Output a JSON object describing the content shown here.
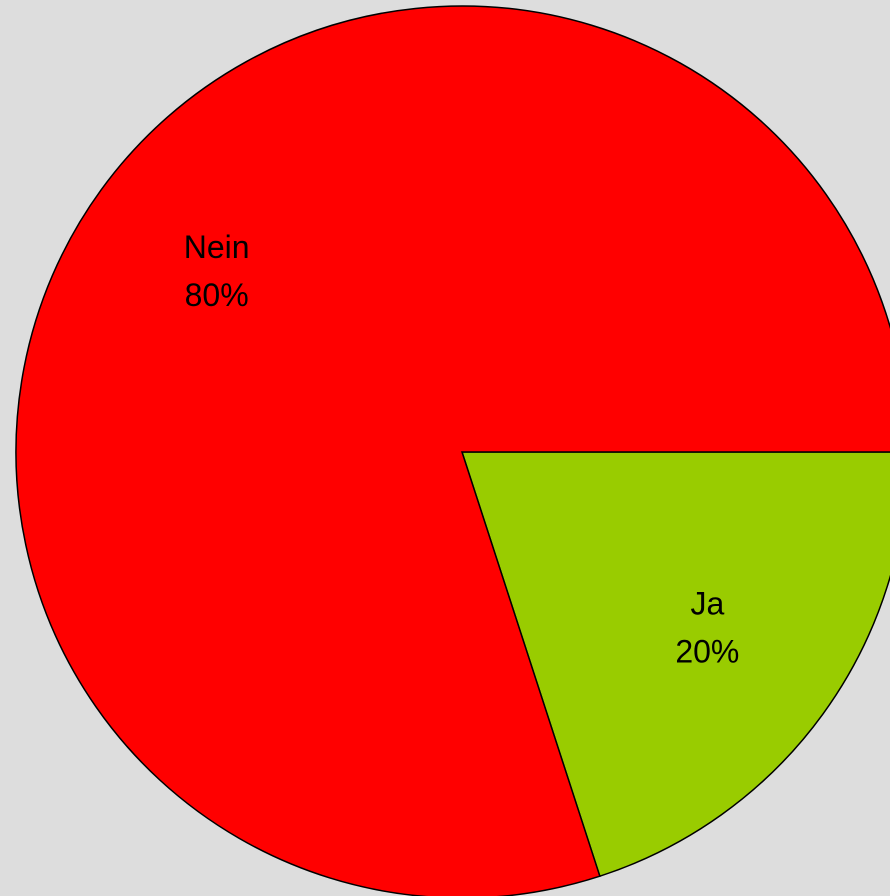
{
  "chart_data": {
    "type": "pie",
    "categories": [
      "Ja",
      "Nein"
    ],
    "values": [
      20,
      80
    ],
    "value_labels": [
      "20%",
      "80%"
    ],
    "colors": [
      "#99cc00",
      "#ff0000"
    ],
    "start_angle": 0,
    "direction": "clockwise"
  }
}
